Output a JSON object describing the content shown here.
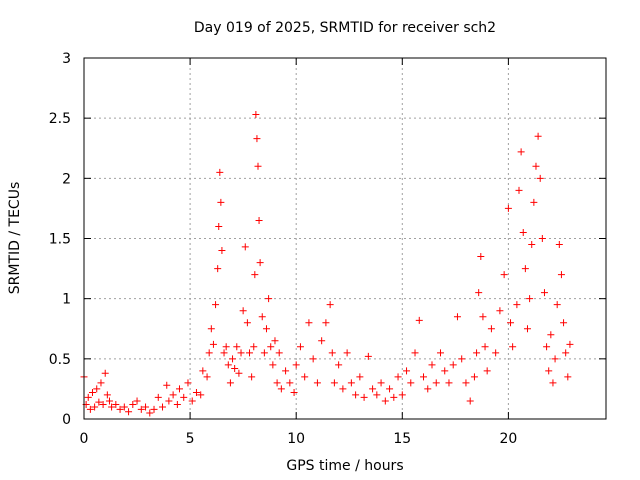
{
  "chart_data": {
    "type": "scatter",
    "title": "Day 019 of 2025, SRMTID for receiver sch2",
    "xlabel": "GPS time / hours",
    "ylabel": "SRMTID / TECUs",
    "xlim": [
      0,
      24.6
    ],
    "ylim": [
      0,
      3
    ],
    "grid": true,
    "marker": "+",
    "colors": {
      "series": "#ff0000",
      "grid": "#a0a0a0",
      "axis": "#000000"
    },
    "x_ticks": [
      {
        "value": 0,
        "label": "0"
      },
      {
        "value": 5,
        "label": "5"
      },
      {
        "value": 10,
        "label": "10"
      },
      {
        "value": 15,
        "label": "15"
      },
      {
        "value": 20,
        "label": "20"
      }
    ],
    "y_ticks": [
      {
        "value": 0,
        "label": "0"
      },
      {
        "value": 0.5,
        "label": "0.5"
      },
      {
        "value": 1,
        "label": "1"
      },
      {
        "value": 1.5,
        "label": "1.5"
      },
      {
        "value": 2,
        "label": "2"
      },
      {
        "value": 2.5,
        "label": "2.5"
      },
      {
        "value": 3,
        "label": "3"
      }
    ],
    "series": [
      {
        "name": "SRMTID",
        "points": [
          [
            0.0,
            0.35
          ],
          [
            0.1,
            0.12
          ],
          [
            0.2,
            0.18
          ],
          [
            0.3,
            0.08
          ],
          [
            0.4,
            0.22
          ],
          [
            0.5,
            0.1
          ],
          [
            0.6,
            0.25
          ],
          [
            0.7,
            0.14
          ],
          [
            0.8,
            0.3
          ],
          [
            0.9,
            0.12
          ],
          [
            1.0,
            0.38
          ],
          [
            1.1,
            0.2
          ],
          [
            1.2,
            0.15
          ],
          [
            1.3,
            0.1
          ],
          [
            1.5,
            0.12
          ],
          [
            1.7,
            0.08
          ],
          [
            1.9,
            0.1
          ],
          [
            2.1,
            0.06
          ],
          [
            2.3,
            0.12
          ],
          [
            2.5,
            0.15
          ],
          [
            2.7,
            0.08
          ],
          [
            2.9,
            0.1
          ],
          [
            3.1,
            0.05
          ],
          [
            3.3,
            0.08
          ],
          [
            3.5,
            0.18
          ],
          [
            3.7,
            0.1
          ],
          [
            3.9,
            0.28
          ],
          [
            4.0,
            0.15
          ],
          [
            4.2,
            0.2
          ],
          [
            4.4,
            0.12
          ],
          [
            4.5,
            0.25
          ],
          [
            4.7,
            0.18
          ],
          [
            4.9,
            0.3
          ],
          [
            5.1,
            0.15
          ],
          [
            5.3,
            0.22
          ],
          [
            5.5,
            0.2
          ],
          [
            5.6,
            0.4
          ],
          [
            5.8,
            0.35
          ],
          [
            5.9,
            0.55
          ],
          [
            6.0,
            0.75
          ],
          [
            6.1,
            0.62
          ],
          [
            6.2,
            0.95
          ],
          [
            6.3,
            1.25
          ],
          [
            6.35,
            1.6
          ],
          [
            6.4,
            2.05
          ],
          [
            6.45,
            1.8
          ],
          [
            6.5,
            1.4
          ],
          [
            6.6,
            0.55
          ],
          [
            6.7,
            0.6
          ],
          [
            6.8,
            0.45
          ],
          [
            6.9,
            0.3
          ],
          [
            7.0,
            0.5
          ],
          [
            7.1,
            0.42
          ],
          [
            7.2,
            0.6
          ],
          [
            7.3,
            0.38
          ],
          [
            7.4,
            0.55
          ],
          [
            7.5,
            0.9
          ],
          [
            7.6,
            1.43
          ],
          [
            7.7,
            0.8
          ],
          [
            7.8,
            0.55
          ],
          [
            7.9,
            0.35
          ],
          [
            8.0,
            0.6
          ],
          [
            8.05,
            1.2
          ],
          [
            8.1,
            2.53
          ],
          [
            8.15,
            2.33
          ],
          [
            8.2,
            2.1
          ],
          [
            8.25,
            1.65
          ],
          [
            8.3,
            1.3
          ],
          [
            8.4,
            0.85
          ],
          [
            8.5,
            0.55
          ],
          [
            8.6,
            0.75
          ],
          [
            8.7,
            1.0
          ],
          [
            8.8,
            0.6
          ],
          [
            8.9,
            0.45
          ],
          [
            9.0,
            0.65
          ],
          [
            9.1,
            0.3
          ],
          [
            9.2,
            0.55
          ],
          [
            9.3,
            0.25
          ],
          [
            9.5,
            0.4
          ],
          [
            9.7,
            0.3
          ],
          [
            9.9,
            0.22
          ],
          [
            10.0,
            0.45
          ],
          [
            10.2,
            0.6
          ],
          [
            10.4,
            0.35
          ],
          [
            10.6,
            0.8
          ],
          [
            10.8,
            0.5
          ],
          [
            11.0,
            0.3
          ],
          [
            11.2,
            0.65
          ],
          [
            11.4,
            0.8
          ],
          [
            11.6,
            0.95
          ],
          [
            11.7,
            0.55
          ],
          [
            11.8,
            0.3
          ],
          [
            12.0,
            0.45
          ],
          [
            12.2,
            0.25
          ],
          [
            12.4,
            0.55
          ],
          [
            12.6,
            0.3
          ],
          [
            12.8,
            0.2
          ],
          [
            13.0,
            0.35
          ],
          [
            13.2,
            0.18
          ],
          [
            13.4,
            0.52
          ],
          [
            13.6,
            0.25
          ],
          [
            13.8,
            0.2
          ],
          [
            14.0,
            0.3
          ],
          [
            14.2,
            0.15
          ],
          [
            14.4,
            0.25
          ],
          [
            14.6,
            0.18
          ],
          [
            14.8,
            0.35
          ],
          [
            15.0,
            0.2
          ],
          [
            15.2,
            0.4
          ],
          [
            15.4,
            0.3
          ],
          [
            15.6,
            0.55
          ],
          [
            15.8,
            0.82
          ],
          [
            16.0,
            0.35
          ],
          [
            16.2,
            0.25
          ],
          [
            16.4,
            0.45
          ],
          [
            16.6,
            0.3
          ],
          [
            16.8,
            0.55
          ],
          [
            17.0,
            0.4
          ],
          [
            17.2,
            0.3
          ],
          [
            17.4,
            0.45
          ],
          [
            17.6,
            0.85
          ],
          [
            17.8,
            0.5
          ],
          [
            18.0,
            0.3
          ],
          [
            18.2,
            0.15
          ],
          [
            18.4,
            0.35
          ],
          [
            18.5,
            0.55
          ],
          [
            18.6,
            1.05
          ],
          [
            18.7,
            1.35
          ],
          [
            18.8,
            0.85
          ],
          [
            18.9,
            0.6
          ],
          [
            19.0,
            0.4
          ],
          [
            19.2,
            0.75
          ],
          [
            19.4,
            0.55
          ],
          [
            19.6,
            0.9
          ],
          [
            19.8,
            1.2
          ],
          [
            20.0,
            1.75
          ],
          [
            20.1,
            0.8
          ],
          [
            20.2,
            0.6
          ],
          [
            20.4,
            0.95
          ],
          [
            20.5,
            1.9
          ],
          [
            20.6,
            2.22
          ],
          [
            20.7,
            1.55
          ],
          [
            20.8,
            1.25
          ],
          [
            20.9,
            0.75
          ],
          [
            21.0,
            1.0
          ],
          [
            21.1,
            1.45
          ],
          [
            21.2,
            1.8
          ],
          [
            21.3,
            2.1
          ],
          [
            21.4,
            2.35
          ],
          [
            21.5,
            2.0
          ],
          [
            21.6,
            1.5
          ],
          [
            21.7,
            1.05
          ],
          [
            21.8,
            0.6
          ],
          [
            21.9,
            0.4
          ],
          [
            22.0,
            0.7
          ],
          [
            22.1,
            0.3
          ],
          [
            22.2,
            0.5
          ],
          [
            22.3,
            0.95
          ],
          [
            22.4,
            1.45
          ],
          [
            22.5,
            1.2
          ],
          [
            22.6,
            0.8
          ],
          [
            22.7,
            0.55
          ],
          [
            22.8,
            0.35
          ],
          [
            22.9,
            0.62
          ]
        ]
      }
    ]
  }
}
